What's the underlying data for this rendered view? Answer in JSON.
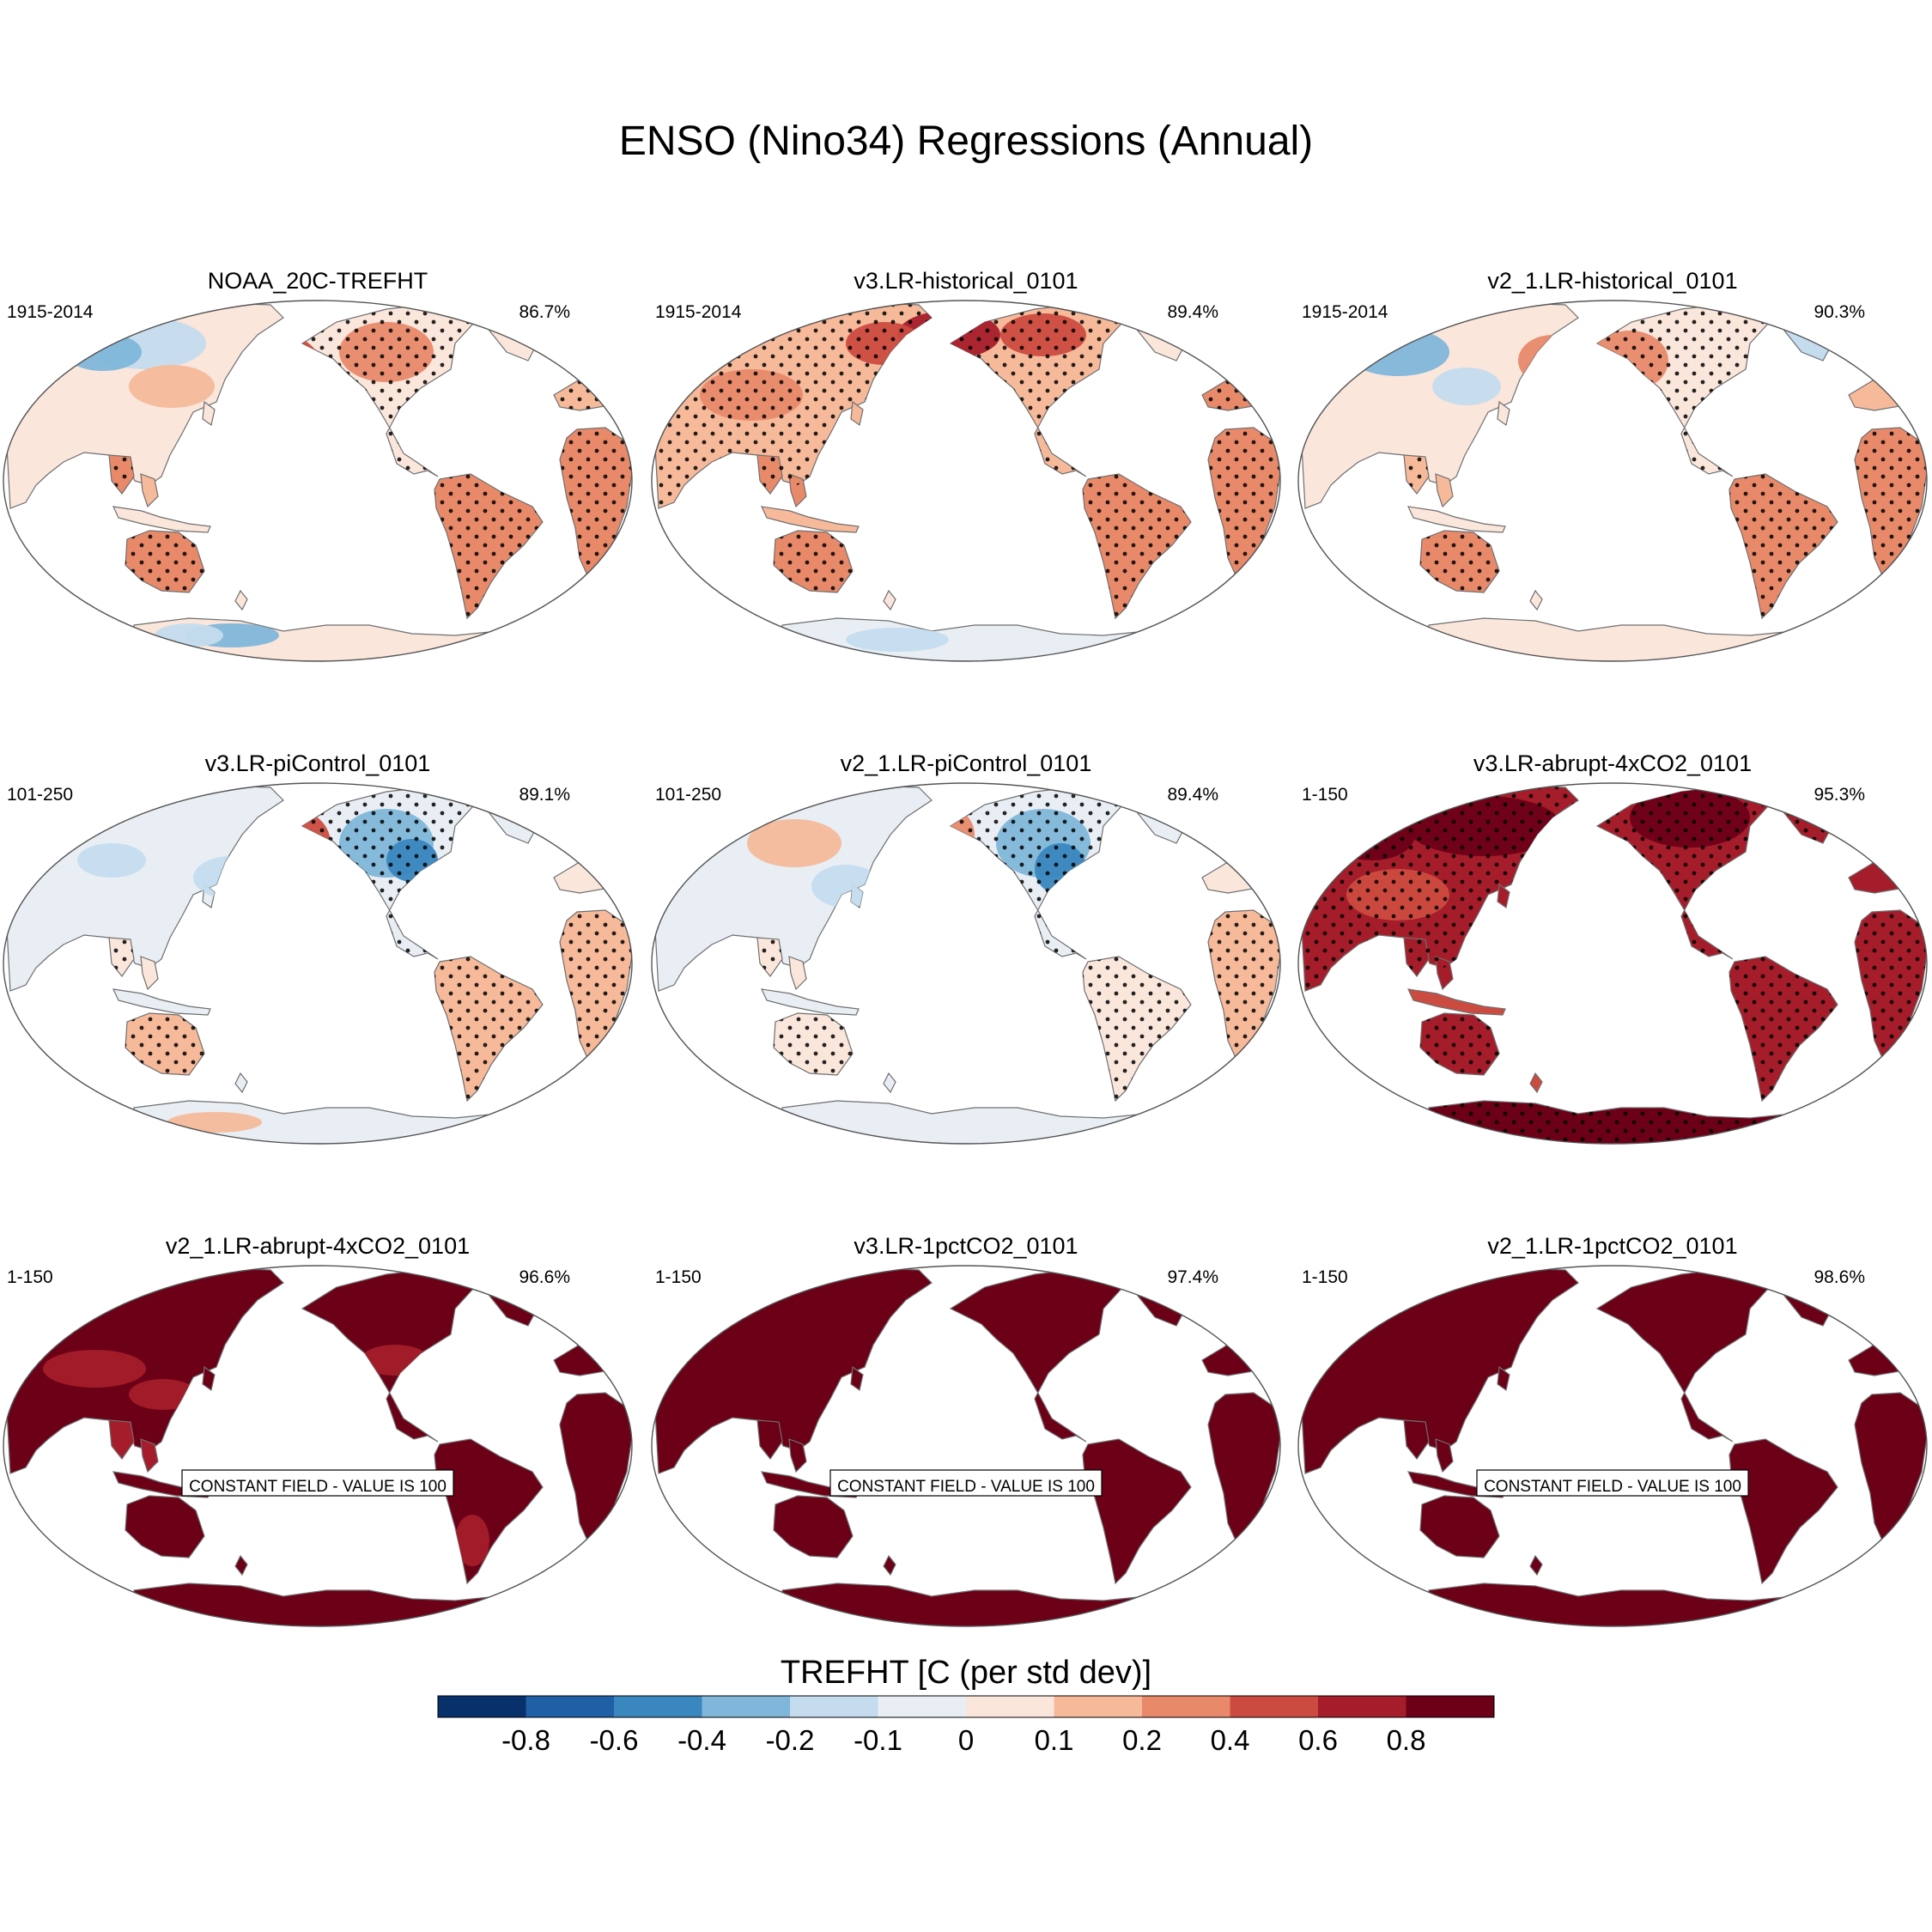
{
  "chart_data": {
    "type": "heatmap",
    "title": "ENSO (Nino34) Regressions (Annual)",
    "projection": "Robinson, Pacific-centered",
    "panels": [
      {
        "title": "NOAA_20C-TREFHT",
        "period": "1915-2014",
        "pattern_correlation": "86.7%",
        "constant_field": false
      },
      {
        "title": "v3.LR-historical_0101",
        "period": "1915-2014",
        "pattern_correlation": "89.4%",
        "constant_field": false
      },
      {
        "title": "v2_1.LR-historical_0101",
        "period": "1915-2014",
        "pattern_correlation": "90.3%",
        "constant_field": false
      },
      {
        "title": "v3.LR-piControl_0101",
        "period": "101-250",
        "pattern_correlation": "89.1%",
        "constant_field": false
      },
      {
        "title": "v2_1.LR-piControl_0101",
        "period": "101-250",
        "pattern_correlation": "89.4%",
        "constant_field": false
      },
      {
        "title": "v3.LR-abrupt-4xCO2_0101",
        "period": "1-150",
        "pattern_correlation": "95.3%",
        "constant_field": false
      },
      {
        "title": "v2_1.LR-abrupt-4xCO2_0101",
        "period": "1-150",
        "pattern_correlation": "96.6%",
        "constant_field": true,
        "constant_label": "CONSTANT FIELD - VALUE IS 100"
      },
      {
        "title": "v3.LR-1pctCO2_0101",
        "period": "1-150",
        "pattern_correlation": "97.4%",
        "constant_field": true,
        "constant_label": "CONSTANT FIELD - VALUE IS 100"
      },
      {
        "title": "v2_1.LR-1pctCO2_0101",
        "period": "1-150",
        "pattern_correlation": "98.6%",
        "constant_field": true,
        "constant_label": "CONSTANT FIELD - VALUE IS 100"
      }
    ],
    "colorbar": {
      "title": "TREFHT [C (per std dev)]",
      "levels": [
        "-0.8",
        "-0.6",
        "-0.4",
        "-0.2",
        "-0.1",
        "0",
        "0.1",
        "0.2",
        "0.4",
        "0.6",
        "0.8"
      ],
      "colors": [
        "#08306b",
        "#1f5fa6",
        "#3a86bf",
        "#7fb6d9",
        "#c4dcee",
        "#e8eef4",
        "#fbe6dc",
        "#f6b99a",
        "#e8896a",
        "#cc4b40",
        "#a51c2a",
        "#6b0017"
      ]
    }
  },
  "colors": {
    "map_outline": "#555555",
    "coast": "#6f6f6f",
    "stipple": "#000000",
    "ocean": "#ffffff"
  }
}
